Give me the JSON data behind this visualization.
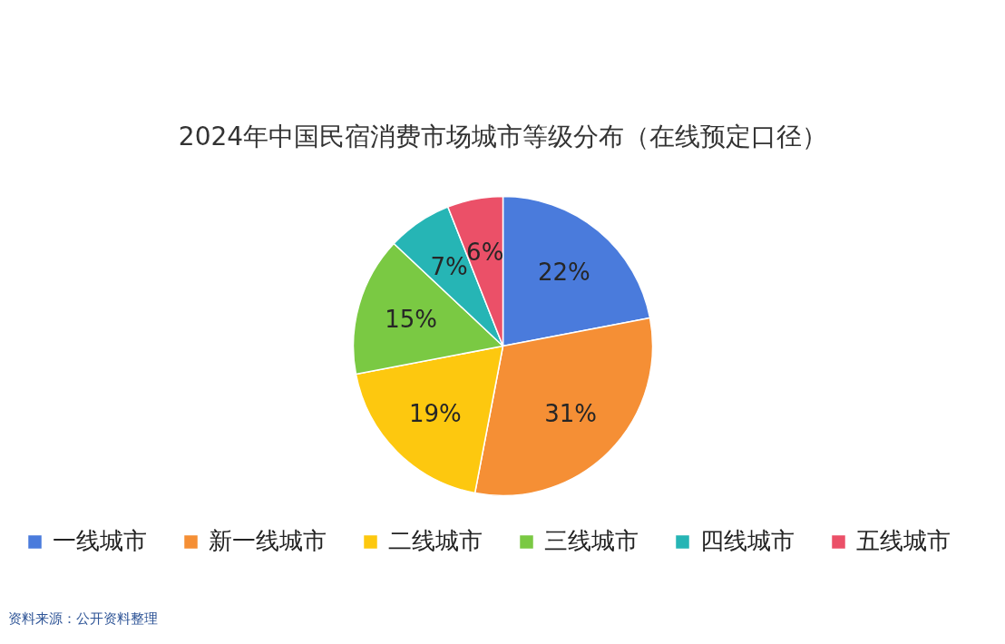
{
  "chart_data": {
    "type": "pie",
    "title": "2024年中国民宿消费市场城市等级分布（在线预定口径）",
    "categories": [
      "一线城市",
      "新一线城市",
      "二线城市",
      "三线城市",
      "四线城市",
      "五线城市"
    ],
    "values": [
      22,
      31,
      19,
      15,
      7,
      6
    ],
    "colors": [
      "#4a7bdc",
      "#f58f35",
      "#fdc80f",
      "#7ac943",
      "#26b5b5",
      "#eb5068"
    ],
    "value_labels": [
      "22%",
      "31%",
      "19%",
      "15%",
      "7%",
      "6%"
    ],
    "legend": "bottom",
    "annotations": [
      "资料来源：公开资料整理"
    ]
  }
}
